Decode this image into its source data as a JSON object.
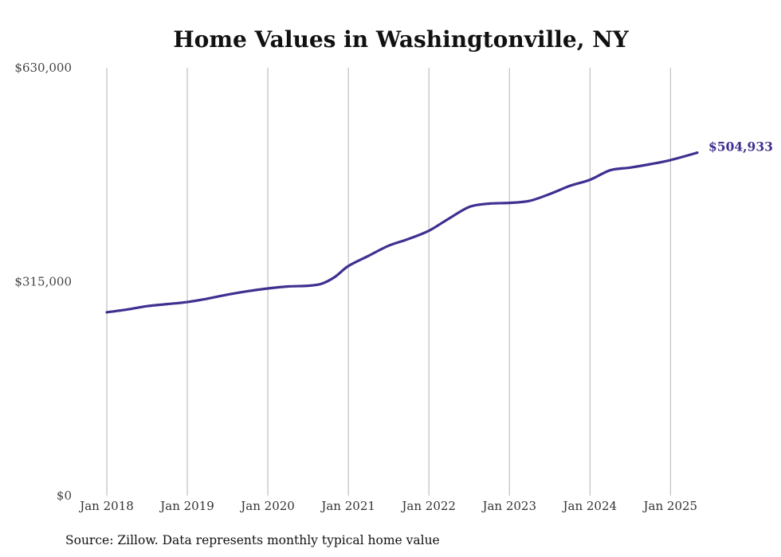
{
  "chart_data": {
    "type": "line",
    "title": "Home Values in Washingtonville, NY",
    "xlabel": "",
    "ylabel": "",
    "grid": "vertical",
    "y_ticks": [
      "$0",
      "$315,000",
      "$630,000"
    ],
    "y_tick_values": [
      0,
      315000,
      630000
    ],
    "ylim": [
      0,
      630000
    ],
    "x_ticks": [
      "Jan 2018",
      "Jan 2019",
      "Jan 2020",
      "Jan 2021",
      "Jan 2022",
      "Jan 2023",
      "Jan 2024",
      "Jan 2025"
    ],
    "x_tick_values": [
      "2018-01",
      "2019-01",
      "2020-01",
      "2021-01",
      "2022-01",
      "2023-01",
      "2024-01",
      "2025-01"
    ],
    "xlim": [
      "2018-01",
      "2025-05"
    ],
    "series": [
      {
        "color": "#3e3090",
        "points": [
          [
            "2018-01",
            270000
          ],
          [
            "2018-04",
            274000
          ],
          [
            "2018-07",
            279000
          ],
          [
            "2018-10",
            282000
          ],
          [
            "2019-01",
            285000
          ],
          [
            "2019-04",
            290000
          ],
          [
            "2019-07",
            296000
          ],
          [
            "2019-10",
            301000
          ],
          [
            "2020-01",
            305000
          ],
          [
            "2020-04",
            308000
          ],
          [
            "2020-07",
            309000
          ],
          [
            "2020-09",
            312000
          ],
          [
            "2020-11",
            322000
          ],
          [
            "2021-01",
            338000
          ],
          [
            "2021-04",
            353000
          ],
          [
            "2021-07",
            368000
          ],
          [
            "2021-10",
            378000
          ],
          [
            "2022-01",
            390000
          ],
          [
            "2022-04",
            408000
          ],
          [
            "2022-07",
            425000
          ],
          [
            "2022-10",
            430000
          ],
          [
            "2023-01",
            431000
          ],
          [
            "2023-04",
            434000
          ],
          [
            "2023-07",
            444000
          ],
          [
            "2023-10",
            456000
          ],
          [
            "2024-01",
            465000
          ],
          [
            "2024-04",
            479000
          ],
          [
            "2024-07",
            483000
          ],
          [
            "2024-10",
            488000
          ],
          [
            "2025-01",
            494000
          ],
          [
            "2025-05",
            504933
          ]
        ]
      }
    ],
    "end_label": "$504,933",
    "source": "Source: Zillow. Data represents monthly typical home value"
  }
}
